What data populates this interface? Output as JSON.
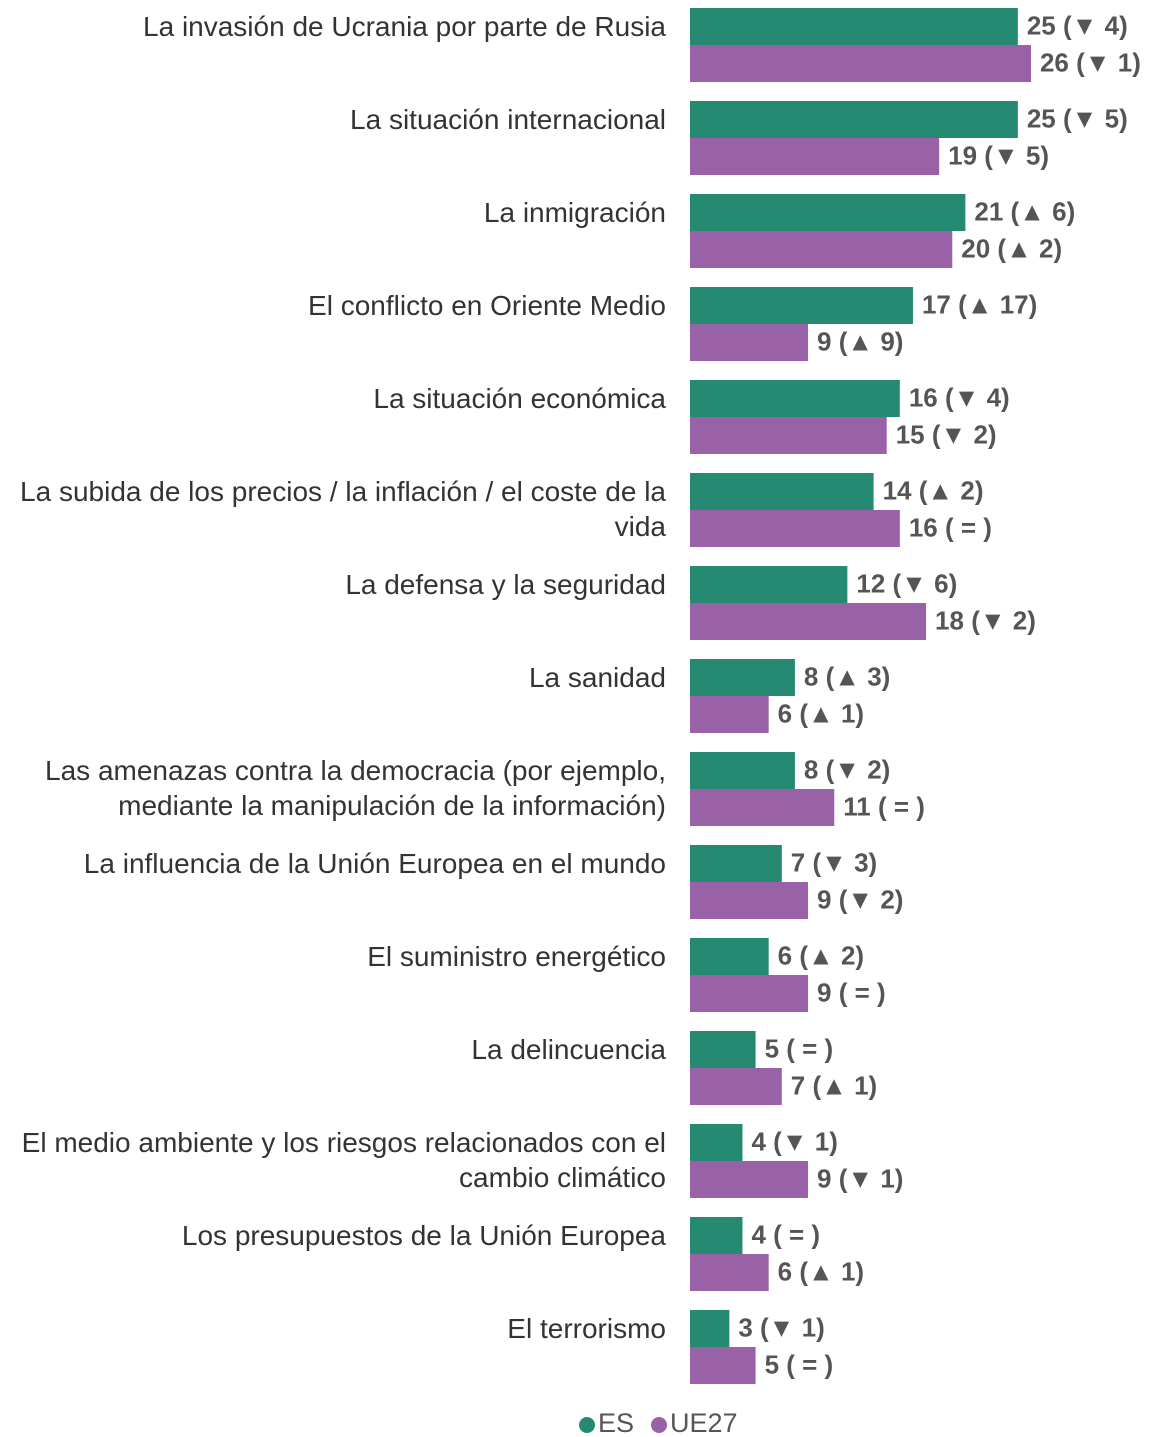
{
  "chart_data": {
    "type": "hbar",
    "categories": [
      "La invasión de Ucrania por parte de Rusia",
      "La situación internacional",
      "La inmigración",
      "El conflicto en Oriente Medio",
      "La situación económica",
      "La subida de los precios / la inflación / el coste de la vida",
      "La defensa y la seguridad",
      "La sanidad",
      "Las amenazas contra la democracia (por ejemplo, mediante la manipulación de la información)",
      "La influencia de la Unión Europea en el mundo",
      "El suministro energético",
      "La delincuencia",
      "El medio ambiente y los riesgos relacionados con el cambio climático",
      "Los presupuestos de la Unión Europea",
      "El terrorismo"
    ],
    "series": [
      {
        "name": "ES",
        "color": "#268a72",
        "values": [
          25,
          25,
          21,
          17,
          16,
          14,
          12,
          8,
          8,
          7,
          6,
          5,
          4,
          4,
          3
        ],
        "value_labels": [
          "25 (▼ 4)",
          "25 (▼ 5)",
          "21 (▲ 6)",
          "17 (▲ 17)",
          "16 (▼ 4)",
          "14 (▲ 2)",
          "12 (▼ 6)",
          "8 (▲ 3)",
          "8 (▼ 2)",
          "7 (▼ 3)",
          "6 (▲ 2)",
          "5 ( = )",
          "4 (▼ 1)",
          "4 ( = )",
          "3 (▼ 1)"
        ]
      },
      {
        "name": "UE27",
        "color": "#9a62a6",
        "values": [
          26,
          19,
          20,
          9,
          15,
          16,
          18,
          6,
          11,
          9,
          9,
          7,
          9,
          6,
          5
        ],
        "value_labels": [
          "26 (▼ 1)",
          "19 (▼ 5)",
          "20 (▲ 2)",
          "9 (▲ 9)",
          "15 (▼ 2)",
          "16 ( = )",
          "18 (▼ 2)",
          "6 (▲ 1)",
          "11 ( = )",
          "9 (▼ 2)",
          "9 ( = )",
          "7 (▲ 1)",
          "9 (▼ 1)",
          "6 (▲ 1)",
          "5 ( = )"
        ]
      }
    ],
    "xlim": [
      0,
      35
    ]
  }
}
